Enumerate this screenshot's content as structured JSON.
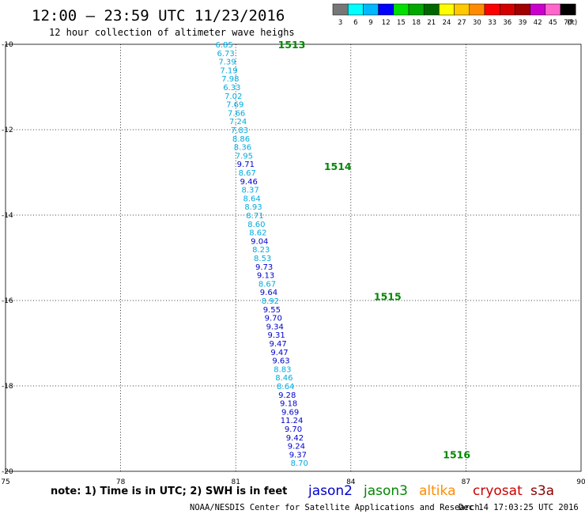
{
  "header": {
    "title": "12:00 – 23:59 UTC 11/23/2016",
    "subtitle": "12 hour collection of altimeter wave heighs"
  },
  "colorbar": {
    "unit": "(ft)",
    "labels": [
      "3",
      "6",
      "9",
      "12",
      "15",
      "18",
      "21",
      "24",
      "27",
      "30",
      "33",
      "36",
      "39",
      "42",
      "45",
      "70"
    ],
    "colors": [
      "#777777",
      "#00ffff",
      "#00b8ff",
      "#0000ff",
      "#00e000",
      "#00a800",
      "#006600",
      "#ffff00",
      "#ffc800",
      "#ff8c00",
      "#ff0000",
      "#d40000",
      "#a00000",
      "#cc00cc",
      "#ff66cc",
      "#000000"
    ]
  },
  "footer": {
    "note": "note: 1) Time is in UTC; 2) SWH is in feet",
    "satellites": [
      {
        "name": "jason2",
        "color": "#0000cc"
      },
      {
        "name": "jason3",
        "color": "#008800"
      },
      {
        "name": "altika",
        "color": "#ff8c00"
      },
      {
        "name": "cryosat",
        "color": "#cc0000"
      },
      {
        "name": "s3a",
        "color": "#8b0000"
      }
    ],
    "credit": "NOAA/NESDIS Center for Satellite Applications and Research",
    "timestamp": "Dec 14 17:03:25 UTC 2016"
  },
  "chart_data": {
    "type": "scatter",
    "xlim": [
      75,
      90
    ],
    "ylim": [
      -20,
      -10
    ],
    "x_ticks": [
      "75",
      "78",
      "81",
      "84",
      "87",
      "90"
    ],
    "y_ticks": [
      "-10",
      "-12",
      "-14",
      "-16",
      "-18",
      "-20"
    ],
    "grid": true,
    "tracks": [
      {
        "pass_labels": [
          {
            "text": "1513",
            "lon": 82.1,
            "lat": -10.0,
            "color": "#008800"
          },
          {
            "text": "1514",
            "lon": 83.3,
            "lat": -12.85,
            "color": "#008800"
          },
          {
            "text": "1515",
            "lon": 84.6,
            "lat": -15.9,
            "color": "#008800"
          },
          {
            "text": "1516",
            "lon": 86.4,
            "lat": -19.6,
            "color": "#008800"
          }
        ],
        "points": [
          {
            "lon": 80.7,
            "lat": -10.0,
            "swh": "6.85",
            "color": "#00aadd"
          },
          {
            "lon": 80.74,
            "lat": -10.2,
            "swh": "6.73",
            "color": "#00aadd"
          },
          {
            "lon": 80.78,
            "lat": -10.4,
            "swh": "7.39",
            "color": "#00aadd"
          },
          {
            "lon": 80.82,
            "lat": -10.6,
            "swh": "7.19",
            "color": "#00aadd"
          },
          {
            "lon": 80.86,
            "lat": -10.8,
            "swh": "7.98",
            "color": "#00aadd"
          },
          {
            "lon": 80.9,
            "lat": -11.0,
            "swh": "6.33",
            "color": "#00aadd"
          },
          {
            "lon": 80.94,
            "lat": -11.2,
            "swh": "7.02",
            "color": "#00aadd"
          },
          {
            "lon": 80.98,
            "lat": -11.4,
            "swh": "7.69",
            "color": "#00aadd"
          },
          {
            "lon": 81.02,
            "lat": -11.6,
            "swh": "7.66",
            "color": "#00aadd"
          },
          {
            "lon": 81.06,
            "lat": -11.8,
            "swh": "7.24",
            "color": "#00aadd"
          },
          {
            "lon": 81.1,
            "lat": -12.0,
            "swh": "7.83",
            "color": "#00aadd"
          },
          {
            "lon": 81.14,
            "lat": -12.2,
            "swh": "8.86",
            "color": "#00aadd"
          },
          {
            "lon": 81.18,
            "lat": -12.4,
            "swh": "8.36",
            "color": "#00aadd"
          },
          {
            "lon": 81.22,
            "lat": -12.6,
            "swh": "7.95",
            "color": "#00aadd"
          },
          {
            "lon": 81.26,
            "lat": -12.8,
            "swh": "9.71",
            "color": "#0000cc"
          },
          {
            "lon": 81.3,
            "lat": -13.0,
            "swh": "8.67",
            "color": "#00aadd"
          },
          {
            "lon": 81.34,
            "lat": -13.2,
            "swh": "9.46",
            "color": "#0000cc"
          },
          {
            "lon": 81.38,
            "lat": -13.4,
            "swh": "8.37",
            "color": "#00aadd"
          },
          {
            "lon": 81.42,
            "lat": -13.6,
            "swh": "8.64",
            "color": "#00aadd"
          },
          {
            "lon": 81.46,
            "lat": -13.8,
            "swh": "8.93",
            "color": "#00aadd"
          },
          {
            "lon": 81.5,
            "lat": -14.0,
            "swh": "8.71",
            "color": "#00aadd"
          },
          {
            "lon": 81.54,
            "lat": -14.2,
            "swh": "8.60",
            "color": "#00aadd"
          },
          {
            "lon": 81.58,
            "lat": -14.4,
            "swh": "8.62",
            "color": "#00aadd"
          },
          {
            "lon": 81.62,
            "lat": -14.6,
            "swh": "9.04",
            "color": "#0000cc"
          },
          {
            "lon": 81.66,
            "lat": -14.8,
            "swh": "8.23",
            "color": "#00aadd"
          },
          {
            "lon": 81.7,
            "lat": -15.0,
            "swh": "8.53",
            "color": "#00aadd"
          },
          {
            "lon": 81.74,
            "lat": -15.2,
            "swh": "9.73",
            "color": "#0000cc"
          },
          {
            "lon": 81.78,
            "lat": -15.4,
            "swh": "9.13",
            "color": "#0000cc"
          },
          {
            "lon": 81.82,
            "lat": -15.6,
            "swh": "8.67",
            "color": "#00aadd"
          },
          {
            "lon": 81.86,
            "lat": -15.8,
            "swh": "9.64",
            "color": "#0000cc"
          },
          {
            "lon": 81.9,
            "lat": -16.0,
            "swh": "8.92",
            "color": "#00aadd"
          },
          {
            "lon": 81.94,
            "lat": -16.2,
            "swh": "9.55",
            "color": "#0000cc"
          },
          {
            "lon": 81.98,
            "lat": -16.4,
            "swh": "9.70",
            "color": "#0000cc"
          },
          {
            "lon": 82.02,
            "lat": -16.6,
            "swh": "9.34",
            "color": "#0000cc"
          },
          {
            "lon": 82.06,
            "lat": -16.8,
            "swh": "9.31",
            "color": "#0000cc"
          },
          {
            "lon": 82.1,
            "lat": -17.0,
            "swh": "9.47",
            "color": "#0000cc"
          },
          {
            "lon": 82.14,
            "lat": -17.2,
            "swh": "9.47",
            "color": "#0000cc"
          },
          {
            "lon": 82.18,
            "lat": -17.4,
            "swh": "9.63",
            "color": "#0000cc"
          },
          {
            "lon": 82.22,
            "lat": -17.6,
            "swh": "8.83",
            "color": "#00aadd"
          },
          {
            "lon": 82.26,
            "lat": -17.8,
            "swh": "8.46",
            "color": "#00aadd"
          },
          {
            "lon": 82.3,
            "lat": -18.0,
            "swh": "8.64",
            "color": "#00aadd"
          },
          {
            "lon": 82.34,
            "lat": -18.2,
            "swh": "9.28",
            "color": "#0000cc"
          },
          {
            "lon": 82.38,
            "lat": -18.4,
            "swh": "9.18",
            "color": "#0000cc"
          },
          {
            "lon": 82.42,
            "lat": -18.6,
            "swh": "9.69",
            "color": "#0000cc"
          },
          {
            "lon": 82.46,
            "lat": -18.8,
            "swh": "11.24",
            "color": "#0000cc"
          },
          {
            "lon": 82.5,
            "lat": -19.0,
            "swh": "9.70",
            "color": "#0000cc"
          },
          {
            "lon": 82.54,
            "lat": -19.2,
            "swh": "9.42",
            "color": "#0000cc"
          },
          {
            "lon": 82.58,
            "lat": -19.4,
            "swh": "9.24",
            "color": "#0000cc"
          },
          {
            "lon": 82.62,
            "lat": -19.6,
            "swh": "9.37",
            "color": "#0000cc"
          },
          {
            "lon": 82.66,
            "lat": -19.8,
            "swh": "8.70",
            "color": "#00aadd"
          }
        ]
      }
    ]
  }
}
